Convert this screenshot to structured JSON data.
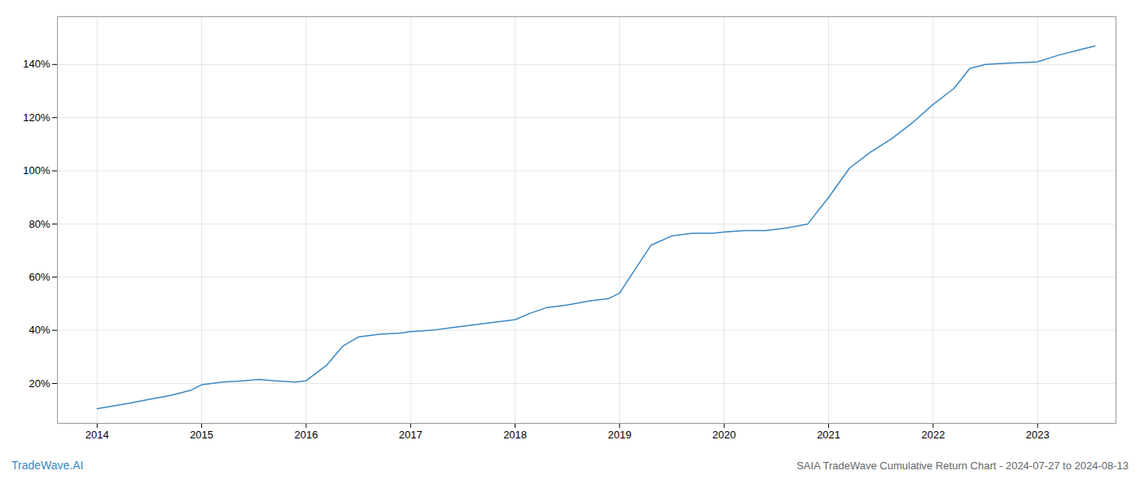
{
  "chart_data": {
    "type": "line",
    "title": "SAIA TradeWave Cumulative Return Chart - 2024-07-27 to 2024-08-13",
    "annotations": [
      "TradeWave.AI"
    ],
    "x": [
      2014.0,
      2014.15,
      2014.3,
      2014.5,
      2014.7,
      2014.9,
      2015.0,
      2015.2,
      2015.4,
      2015.55,
      2015.7,
      2015.9,
      2016.0,
      2016.2,
      2016.35,
      2016.5,
      2016.7,
      2016.9,
      2017.0,
      2017.2,
      2017.4,
      2017.6,
      2017.8,
      2018.0,
      2018.15,
      2018.3,
      2018.5,
      2018.7,
      2018.9,
      2019.0,
      2019.15,
      2019.3,
      2019.5,
      2019.7,
      2019.9,
      2020.0,
      2020.2,
      2020.4,
      2020.6,
      2020.8,
      2021.0,
      2021.2,
      2021.4,
      2021.6,
      2021.8,
      2022.0,
      2022.2,
      2022.35,
      2022.5,
      2022.7,
      2023.0,
      2023.2,
      2023.4,
      2023.55
    ],
    "values": [
      10.5,
      11.5,
      12.5,
      14.0,
      15.5,
      17.5,
      19.5,
      20.5,
      21.0,
      21.5,
      21.0,
      20.5,
      21.0,
      27.0,
      34.0,
      37.5,
      38.5,
      39.0,
      39.5,
      40.0,
      41.0,
      42.0,
      43.0,
      44.0,
      46.5,
      48.5,
      49.5,
      51.0,
      52.0,
      54.0,
      63.0,
      72.0,
      75.5,
      76.5,
      76.5,
      77.0,
      77.5,
      77.5,
      78.5,
      80.0,
      90.0,
      101.0,
      107.0,
      112.0,
      118.0,
      125.0,
      131.0,
      138.5,
      140.0,
      140.5,
      141.0,
      143.5,
      145.5,
      147.0
    ],
    "color": "#3a88c5",
    "xlim": [
      2013.62,
      2023.75
    ],
    "ylim": [
      5,
      158
    ],
    "xticks": [
      2014,
      2015,
      2016,
      2017,
      2018,
      2019,
      2020,
      2021,
      2022,
      2023
    ],
    "yticks": [
      {
        "value": 20,
        "label": "20%"
      },
      {
        "value": 40,
        "label": "40%"
      },
      {
        "value": 60,
        "label": "60%"
      },
      {
        "value": 80,
        "label": "80%"
      },
      {
        "value": 100,
        "label": "100%"
      },
      {
        "value": 120,
        "label": "120%"
      },
      {
        "value": 140,
        "label": "140%"
      }
    ],
    "grid": true
  }
}
